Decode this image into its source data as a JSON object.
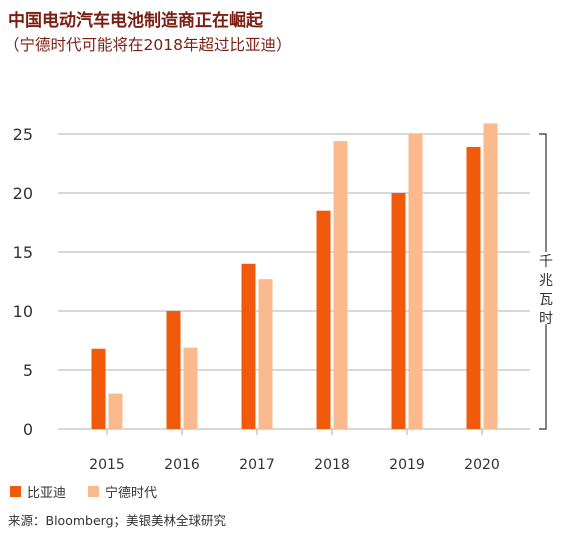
{
  "header": {
    "title": "中国电动汽车电池制造商正在崛起",
    "subtitle": "（宁德时代可能将在2018年超过比亚迪）"
  },
  "source": "来源：Bloomberg；美银美林全球研究",
  "colors": {
    "byd": "#f05a0a",
    "catl": "#fbb98e",
    "grid": "#999999"
  },
  "chart_data": {
    "type": "bar",
    "categories": [
      "2015",
      "2016",
      "2017",
      "2018",
      "2019",
      "2020"
    ],
    "series": [
      {
        "name": "比亚迪",
        "values": [
          6.8,
          10.0,
          14.0,
          18.5,
          20.0,
          23.9
        ]
      },
      {
        "name": "宁德时代",
        "values": [
          3.0,
          6.9,
          12.7,
          24.4,
          25.0,
          25.9
        ]
      }
    ],
    "y_ticks": [
      0,
      5,
      10,
      15,
      20,
      25
    ],
    "ylim": [
      0,
      25
    ],
    "ylabel": "千兆瓦时",
    "legend": "bottom-left",
    "grid": true
  }
}
